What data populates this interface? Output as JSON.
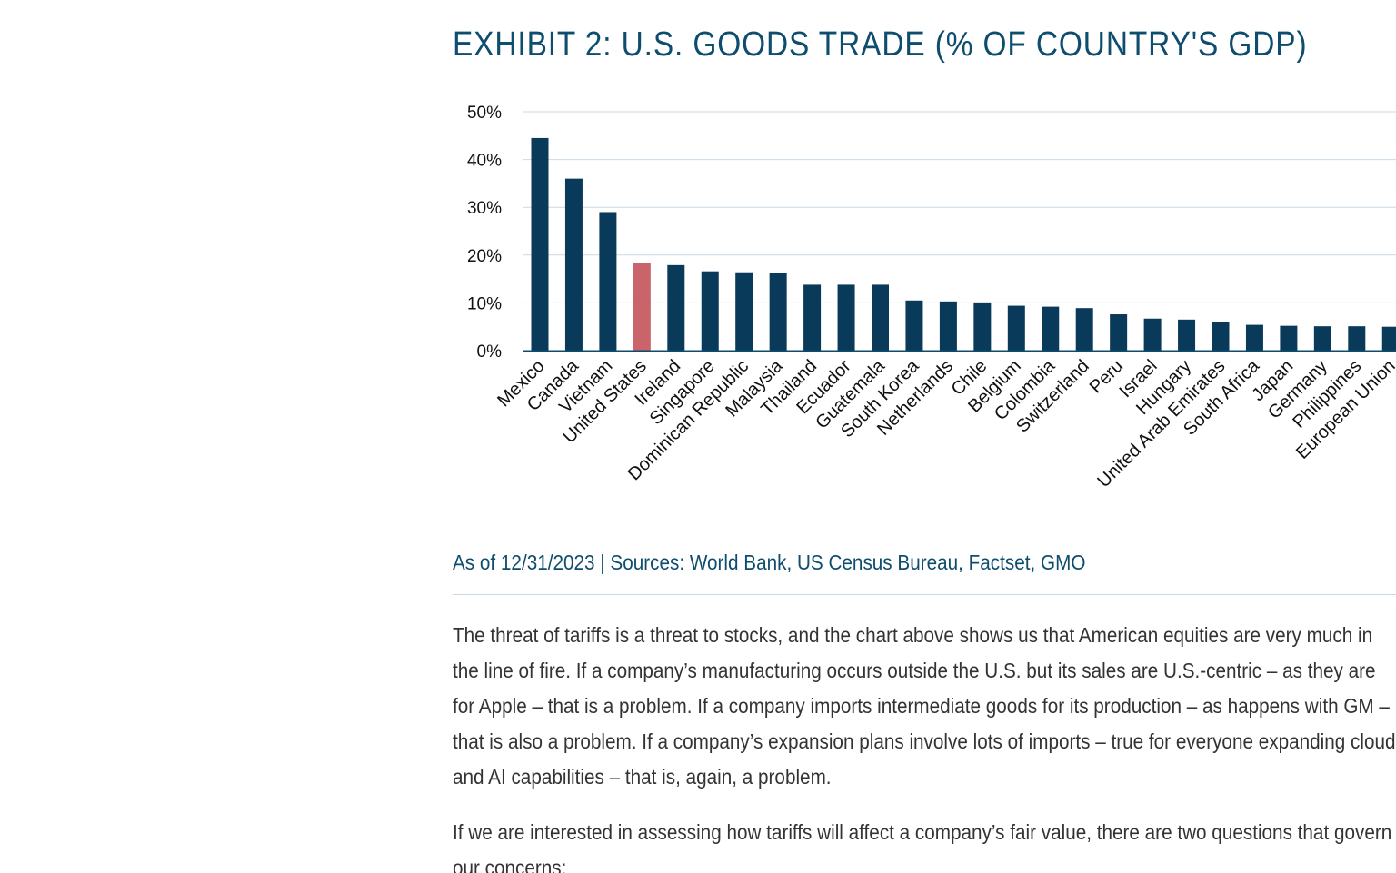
{
  "exhibit": {
    "title": "EXHIBIT 2: U.S. GOODS TRADE (% OF COUNTRY'S GDP)",
    "source": "As of 12/31/2023 | Sources: World Bank, US Census Bureau, Factset, GMO"
  },
  "colors": {
    "bar": "#0a3a5a",
    "highlight": "#c9646b",
    "gridline": "#c9d9e4",
    "axis": "#0e4d6e"
  },
  "chart_data": {
    "type": "bar",
    "title": "EXHIBIT 2: U.S. GOODS TRADE (% OF COUNTRY'S GDP)",
    "xlabel": "",
    "ylabel": "",
    "ylim": [
      0,
      50
    ],
    "y_ticks": [
      "0%",
      "10%",
      "20%",
      "30%",
      "40%",
      "50%"
    ],
    "grid": true,
    "highlighted_category": "United States",
    "categories": [
      "Mexico",
      "Canada",
      "Vietnam",
      "United States",
      "Ireland",
      "Singapore",
      "Dominican Republic",
      "Malaysia",
      "Thailand",
      "Ecuador",
      "Guatemala",
      "South Korea",
      "Netherlands",
      "Chile",
      "Belgium",
      "Colombia",
      "Switzerland",
      "Peru",
      "Israel",
      "Hungary",
      "United Arab Emirates",
      "South Africa",
      "Japan",
      "Germany",
      "Philippines",
      "European Union"
    ],
    "values": [
      44.5,
      36,
      29,
      18.3,
      17.9,
      16.6,
      16.4,
      16.3,
      13.8,
      13.8,
      13.8,
      10.5,
      10.3,
      10.1,
      9.4,
      9.2,
      8.9,
      7.6,
      6.7,
      6.5,
      6.0,
      5.4,
      5.2,
      5.1,
      5.1,
      5.0
    ]
  },
  "article": {
    "paragraph1": "The threat of tariffs is a threat to stocks, and the chart above shows us that American equities are very much in the line of fire. If a company’s manufacturing occurs outside the U.S. but its sales are U.S.-centric – as they are for Apple – that is a problem. If a company imports intermediate goods for its production – as happens with GM – that is also a problem. If a company’s expansion plans involve lots of imports – true for everyone expanding cloud and AI capabilities – that is, again, a problem.",
    "paragraph2": "If we are interested in assessing how tariffs will affect a company’s fair value, there are two questions that govern our concerns:"
  }
}
